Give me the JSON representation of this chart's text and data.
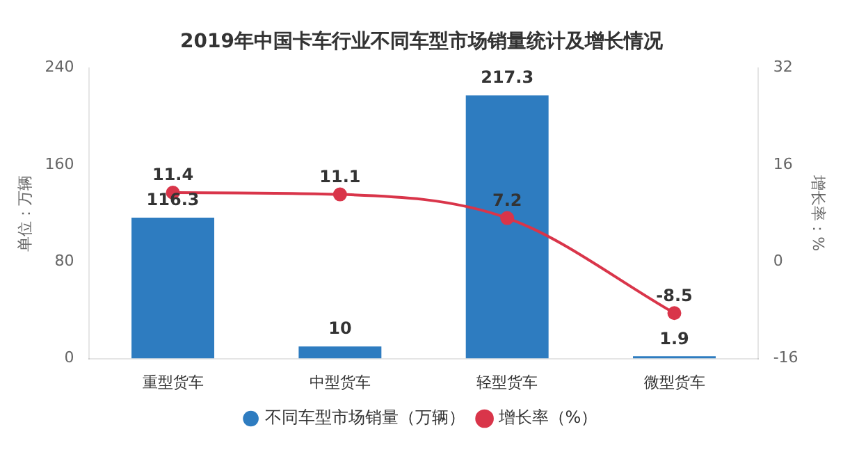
{
  "chart_data": {
    "type": "bar",
    "title": "2019年中国卡车行业不同车型市场销量统计及增长情况",
    "categories": [
      "重型货车",
      "中型货车",
      "轻型货车",
      "微型货车"
    ],
    "series": [
      {
        "name": "不同车型市场销量（万辆）",
        "color": "#2e7cc0",
        "values": [
          116.3,
          10,
          217.3,
          1.9
        ]
      },
      {
        "name": "增长率（%）",
        "type": "line",
        "axis": "y2",
        "color": "#d9354a",
        "values": [
          11.4,
          11.1,
          7.2,
          -8.5
        ]
      }
    ],
    "ylabel": "单位：万辆",
    "y2label": "增长率：%",
    "ylim": [
      0,
      240
    ],
    "yticks": [
      0,
      80,
      160,
      240
    ],
    "y2lim": [
      -16,
      32
    ],
    "y2ticks": [
      -16,
      0,
      16,
      32
    ],
    "data_labels": true,
    "legend": "bottom",
    "marker": "circle"
  }
}
